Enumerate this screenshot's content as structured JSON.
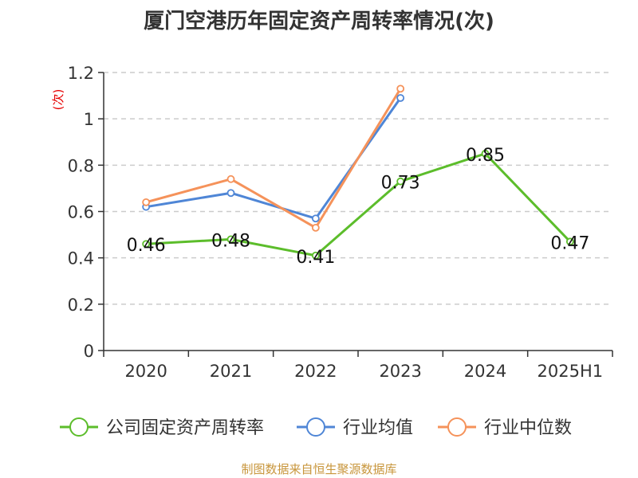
{
  "chart_data": {
    "type": "line",
    "title": "厦门空港历年固定资产周转率情况(次)",
    "ylabel": "(次)",
    "xlabel": "",
    "categories": [
      "2020",
      "2021",
      "2022",
      "2023",
      "2024",
      "2025H1"
    ],
    "ylim": [
      0,
      1.2
    ],
    "yticks": [
      0,
      0.2,
      0.4,
      0.6,
      0.8,
      1,
      1.2
    ],
    "grid": true,
    "legend_position": "bottom",
    "series": [
      {
        "name": "公司固定资产周转率",
        "color": "#5cbd2b",
        "values": [
          0.46,
          0.48,
          0.41,
          0.73,
          0.85,
          0.47
        ],
        "show_labels": true
      },
      {
        "name": "行业均值",
        "color": "#4f86d6",
        "values": [
          0.62,
          0.68,
          0.57,
          1.09,
          null,
          null
        ],
        "show_labels": false
      },
      {
        "name": "行业中位数",
        "color": "#f5925a",
        "values": [
          0.64,
          0.74,
          0.53,
          1.13,
          null,
          null
        ],
        "show_labels": false
      }
    ]
  },
  "source": "制图数据来自恒生聚源数据库"
}
